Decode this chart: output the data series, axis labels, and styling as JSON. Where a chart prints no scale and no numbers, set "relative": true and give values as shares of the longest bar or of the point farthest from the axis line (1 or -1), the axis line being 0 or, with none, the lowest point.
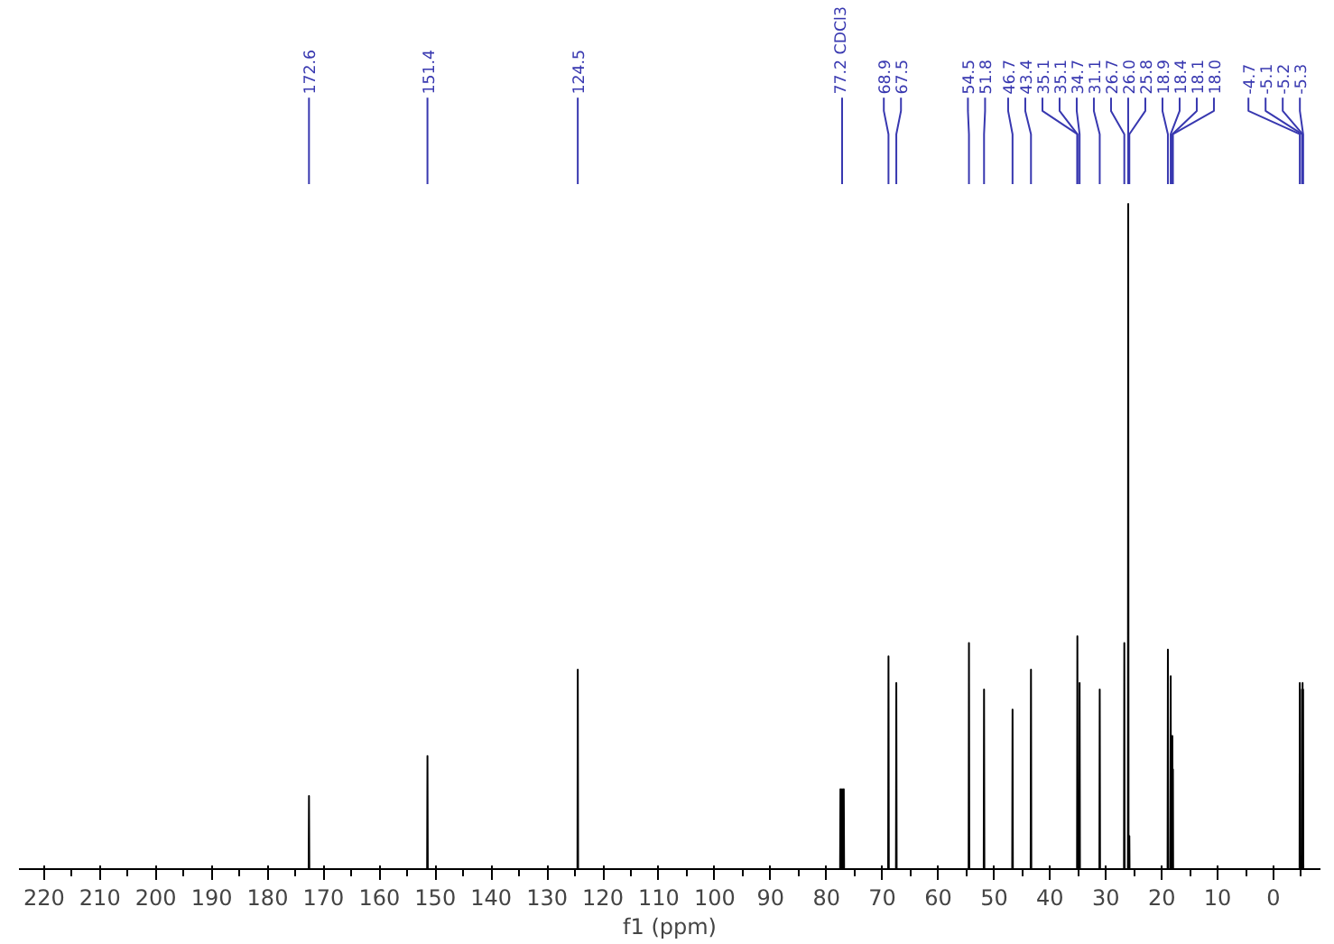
{
  "chart_data": {
    "type": "line",
    "relative": true,
    "xlabel": "f1 (ppm)",
    "xlim": [
      224.5,
      -8.4
    ],
    "xticks": [
      220,
      210,
      200,
      190,
      180,
      170,
      160,
      150,
      140,
      130,
      120,
      110,
      100,
      90,
      80,
      70,
      60,
      50,
      40,
      30,
      20,
      10,
      0
    ],
    "grid": false,
    "tick_labels": "x",
    "series": [
      {
        "color": "#000000",
        "x": [
          224.5,
          172.66,
          172.6,
          172.54,
          151.46,
          151.4,
          151.34,
          124.56,
          124.5,
          124.44,
          77.56,
          77.5,
          77.44,
          77.26,
          77.2,
          77.14,
          76.96,
          76.9,
          76.84,
          68.96,
          68.9,
          68.84,
          67.56,
          67.5,
          67.44,
          54.56,
          54.5,
          54.44,
          51.86,
          51.8,
          51.74,
          46.76,
          46.7,
          46.64,
          43.46,
          43.4,
          43.34,
          35.16,
          35.1,
          35.04,
          34.76,
          34.7,
          34.64,
          31.16,
          31.1,
          31.04,
          26.76,
          26.7,
          26.64,
          26.06,
          26.0,
          25.94,
          25.84,
          25.8,
          25.76,
          18.96,
          18.9,
          18.84,
          18.46,
          18.4,
          18.34,
          18.14,
          18.1,
          18.06,
          18.04,
          18.0,
          17.96,
          -4.66,
          -4.7,
          -4.74,
          -5.06,
          -5.1,
          -5.14,
          -5.16,
          -5.2,
          -5.24,
          -5.26,
          -5.3,
          -5.34,
          -8.4
        ],
        "values": [
          0,
          0,
          0.11,
          0,
          0,
          0.17,
          0,
          0,
          0.3,
          0,
          0,
          0.12,
          0,
          0,
          0.12,
          0,
          0,
          0.12,
          0,
          0,
          0.32,
          0,
          0,
          0.28,
          0,
          0,
          0.34,
          0,
          0,
          0.27,
          0,
          0,
          0.24,
          0,
          0,
          0.3,
          0,
          0,
          0.35,
          0,
          0,
          0.28,
          0,
          0,
          0.27,
          0,
          0,
          0.34,
          0,
          0,
          1.0,
          0,
          0,
          0.05,
          0,
          0,
          0.33,
          0,
          0,
          0.29,
          0,
          0,
          0.2,
          0,
          0,
          0.15,
          0,
          0,
          0.28,
          0,
          0,
          0.27,
          0,
          0,
          0.28,
          0,
          0,
          0.27,
          0,
          0
        ]
      }
    ],
    "annotations": [
      {
        "text": "172.6",
        "x": 172.6
      },
      {
        "text": "151.4",
        "x": 151.4
      },
      {
        "text": "124.5",
        "x": 124.5
      },
      {
        "text": "77.2 CDCl3",
        "x": 77.2
      },
      {
        "text": "68.9",
        "x": 68.9
      },
      {
        "text": "67.5",
        "x": 67.5
      },
      {
        "text": "54.5",
        "x": 54.5
      },
      {
        "text": "51.8",
        "x": 51.8
      },
      {
        "text": "46.7",
        "x": 46.7
      },
      {
        "text": "43.4",
        "x": 43.4
      },
      {
        "text": "35.1",
        "x": 35.1
      },
      {
        "text": "35.1",
        "x": 35.1
      },
      {
        "text": "34.7",
        "x": 34.7
      },
      {
        "text": "31.1",
        "x": 31.1
      },
      {
        "text": "26.7",
        "x": 26.7
      },
      {
        "text": "26.0",
        "x": 26.0
      },
      {
        "text": "25.8",
        "x": 25.8
      },
      {
        "text": "18.9",
        "x": 18.9
      },
      {
        "text": "18.4",
        "x": 18.4
      },
      {
        "text": "18.1",
        "x": 18.1
      },
      {
        "text": "18.0",
        "x": 18.0
      },
      {
        "text": "-4.7",
        "x": -4.7
      },
      {
        "text": "-5.1",
        "x": -5.1
      },
      {
        "text": "-5.2",
        "x": -5.2
      },
      {
        "text": "-5.3",
        "x": -5.3
      }
    ]
  }
}
